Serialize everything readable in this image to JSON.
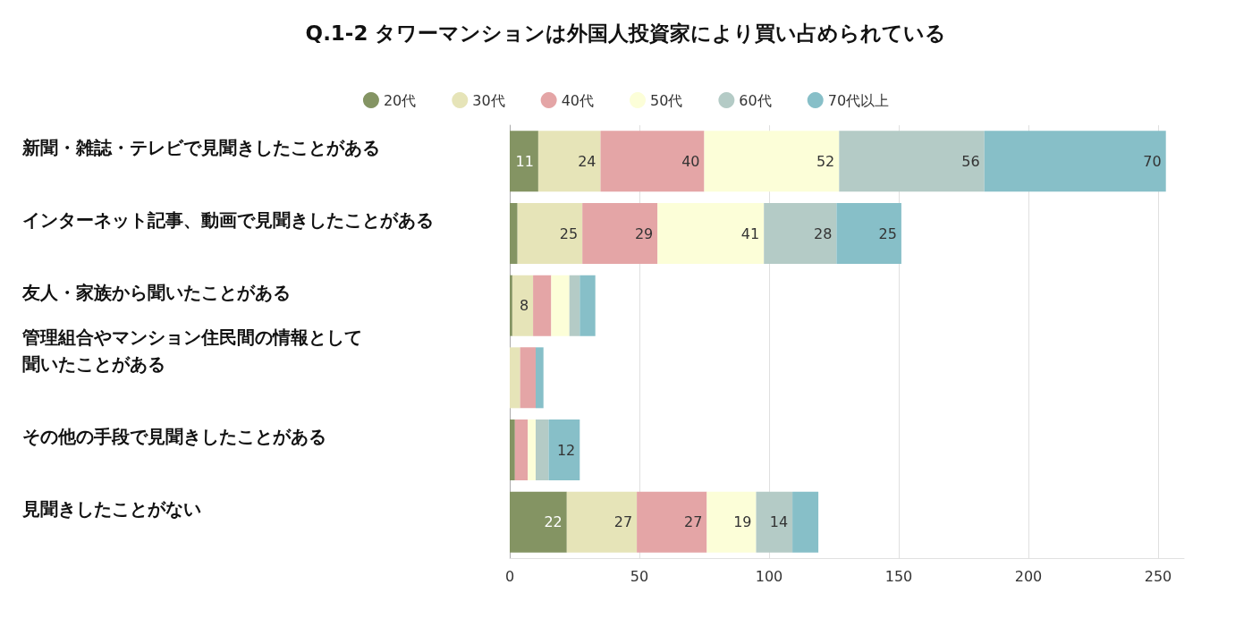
{
  "chart_data": {
    "type": "bar",
    "orientation": "horizontal",
    "stacked": true,
    "title": "Q.1-2 タワーマンションは外国人投資家により買い占められている",
    "categories": [
      "新聞・雑誌・テレビで見聞きしたことがある",
      "インターネット記事、動画で見聞きしたことがある",
      "友人・家族から聞いたことがある",
      "管理組合やマンション住民間の情報として聞いたことがある",
      "その他の手段で見聞きしたことがある",
      "見聞きしたことがない"
    ],
    "series": [
      {
        "name": "20代",
        "color": "#849463",
        "values": [
          11,
          3,
          1,
          0,
          2,
          22
        ],
        "value_labels": [
          "11",
          null,
          null,
          null,
          null,
          "22"
        ]
      },
      {
        "name": "30代",
        "color": "#e6e4b8",
        "values": [
          24,
          25,
          8,
          4,
          0,
          27
        ],
        "value_labels": [
          "24",
          "25",
          "8",
          null,
          null,
          "27"
        ]
      },
      {
        "name": "40代",
        "color": "#e4a5a6",
        "values": [
          40,
          29,
          7,
          6,
          5,
          27
        ],
        "value_labels": [
          "40",
          "29",
          null,
          null,
          null,
          "27"
        ]
      },
      {
        "name": "50代",
        "color": "#fcfed8",
        "values": [
          52,
          41,
          7,
          0,
          3,
          19
        ],
        "value_labels": [
          "52",
          "41",
          null,
          null,
          null,
          "19"
        ]
      },
      {
        "name": "60代",
        "color": "#b4cbc6",
        "values": [
          56,
          28,
          4,
          0,
          5,
          14
        ],
        "value_labels": [
          "56",
          "28",
          null,
          null,
          null,
          "14"
        ]
      },
      {
        "name": "70代以上",
        "color": "#87bfc8",
        "values": [
          70,
          25,
          6,
          3,
          12,
          10
        ],
        "value_labels": [
          "70",
          "25",
          null,
          null,
          "12",
          null
        ]
      }
    ],
    "xlim": [
      0,
      260
    ],
    "xticks": [
      0,
      50,
      100,
      150,
      200,
      250
    ],
    "grid": "x",
    "legend": "top"
  }
}
